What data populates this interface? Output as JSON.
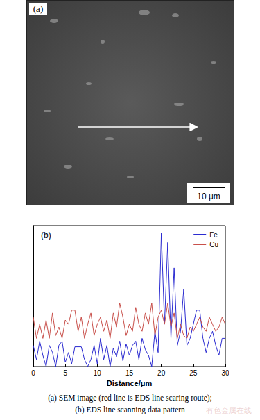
{
  "chart_data": {
    "type": "line",
    "title": "(b)",
    "x_label": "Distance/μm",
    "x": [
      0,
      0.5,
      1,
      1.5,
      2,
      2.5,
      3,
      3.5,
      4,
      4.5,
      5,
      5.5,
      6,
      6.5,
      7,
      7.5,
      8,
      8.5,
      9,
      9.5,
      10,
      10.5,
      11,
      11.5,
      12,
      12.5,
      13,
      13.5,
      14,
      14.5,
      15,
      15.5,
      16,
      16.5,
      17,
      17.5,
      18,
      18.5,
      19,
      19.5,
      20,
      20.5,
      21,
      21.5,
      22,
      22.5,
      23,
      23.5,
      24,
      24.5,
      25,
      25.5,
      26,
      26.5,
      27,
      27.5,
      28,
      28.5,
      29,
      29.5,
      30
    ],
    "series": [
      {
        "name": "Fe",
        "color": "#2b2bd0",
        "values": [
          15,
          5,
          18,
          8,
          0,
          15,
          10,
          0,
          15,
          18,
          3,
          10,
          2,
          14,
          14,
          14,
          5,
          0,
          5,
          15,
          2,
          20,
          5,
          15,
          0,
          13,
          7,
          18,
          4,
          16,
          8,
          15,
          18,
          5,
          20,
          12,
          8,
          0,
          25,
          10,
          95,
          30,
          88,
          20,
          70,
          15,
          25,
          55,
          15,
          20,
          30,
          40,
          40,
          20,
          10,
          20,
          25,
          15,
          8,
          20,
          20
        ]
      },
      {
        "name": "Cu",
        "color": "#c8504b",
        "values": [
          35,
          20,
          30,
          20,
          33,
          20,
          38,
          22,
          28,
          20,
          33,
          30,
          40,
          40,
          25,
          35,
          20,
          30,
          38,
          22,
          30,
          35,
          25,
          33,
          20,
          38,
          28,
          45,
          35,
          22,
          30,
          25,
          42,
          30,
          25,
          38,
          30,
          45,
          22,
          35,
          40,
          30,
          45,
          28,
          38,
          20,
          30,
          22,
          20,
          28,
          25,
          30,
          35,
          28,
          25,
          35,
          30,
          25,
          28,
          35,
          30
        ]
      }
    ],
    "xlim": [
      0,
      30
    ],
    "xticks": [
      0,
      5,
      10,
      15,
      20,
      25,
      30
    ],
    "ylim": [
      0,
      100
    ],
    "tick_labels": "x",
    "grid": false,
    "legend": "top-right"
  },
  "image_panel": {
    "label": "(a)",
    "scale_bar": "10 μm"
  },
  "caption": [
    "(a) SEM image (red line is EDS line scaring route);",
    "(b) EDS line scanning data pattern"
  ],
  "watermark": "有色金属在线"
}
